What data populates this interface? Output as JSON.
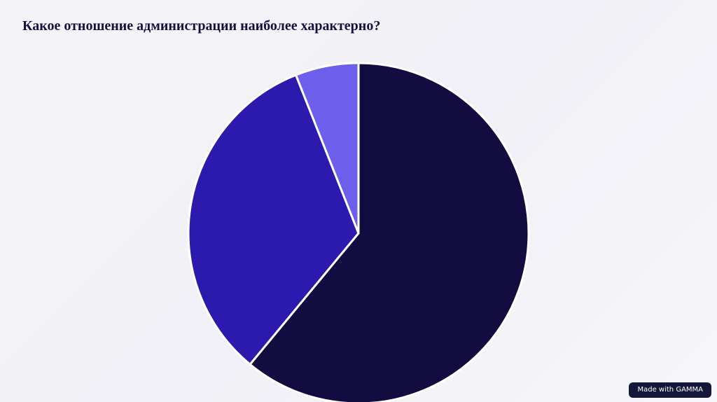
{
  "chart_data": {
    "type": "pie",
    "title": "Какое отношение администрации наиболее характерно?",
    "values": [
      61,
      33,
      6
    ],
    "colors": [
      "#120c40",
      "#2b1aad",
      "#6e5eec"
    ],
    "start_angle": 0,
    "direction": "clockwise"
  },
  "footer": {
    "badge": "Made with GAMMA"
  }
}
